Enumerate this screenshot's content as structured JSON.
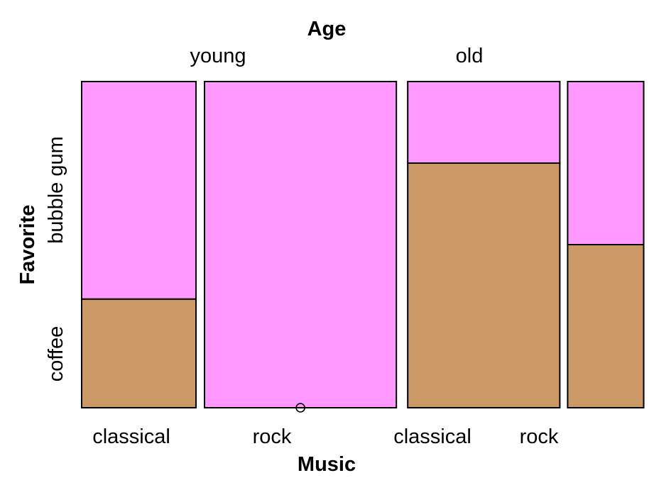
{
  "chart_data": {
    "type": "mosaic",
    "top_title": "Age",
    "bottom_title": "Music",
    "left_title": "Favorite",
    "age_levels": [
      "young",
      "old"
    ],
    "music_levels": [
      "classical",
      "rock"
    ],
    "favorite_levels": [
      "coffee",
      "bubble gum"
    ],
    "columns": [
      {
        "age": "young",
        "music": "classical",
        "width_share": 0.233,
        "coffee": 0.333,
        "bubble_gum": 0.667
      },
      {
        "age": "young",
        "music": "rock",
        "width_share": 0.391,
        "coffee": 0.0,
        "bubble_gum": 1.0
      },
      {
        "age": "old",
        "music": "classical",
        "width_share": 0.31,
        "coffee": 0.75,
        "bubble_gum": 0.25
      },
      {
        "age": "old",
        "music": "rock",
        "width_share": 0.155,
        "coffee": 0.5,
        "bubble_gum": 0.5
      }
    ],
    "colors": {
      "coffee": "#CC9966",
      "bubble gum": "#FF99FF"
    },
    "empty_cell_marker": "circle"
  }
}
